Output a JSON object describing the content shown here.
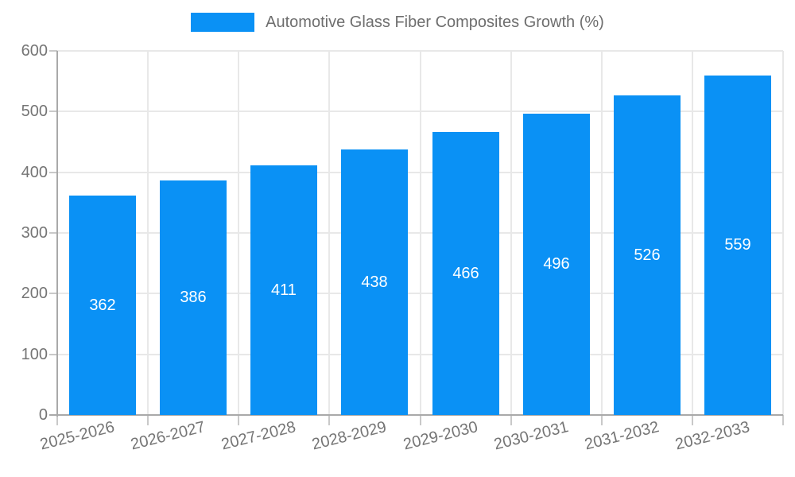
{
  "chart_data": {
    "type": "bar",
    "title": "Automotive Glass Fiber Composites Growth (%)",
    "categories": [
      "2025-2026",
      "2026-2027",
      "2027-2028",
      "2028-2029",
      "2029-2030",
      "2030-2031",
      "2031-2032",
      "2032-2033"
    ],
    "values": [
      362,
      386,
      411,
      438,
      466,
      496,
      526,
      559
    ],
    "xlabel": "",
    "ylabel": "",
    "ylim": [
      0,
      600
    ],
    "yticks": [
      0,
      100,
      200,
      300,
      400,
      500,
      600
    ],
    "grid": true,
    "legend_position": "top",
    "value_labels_shown": true,
    "colors": {
      "bar": "#0a91f5",
      "value_label": "#ffffff",
      "axis_text": "#757575",
      "legend_text": "#6e6e6e",
      "grid_line": "#e8e8e8",
      "axis_line": "#a9a9a9",
      "tick": "#c9c9c9",
      "background": "#ffffff"
    }
  }
}
